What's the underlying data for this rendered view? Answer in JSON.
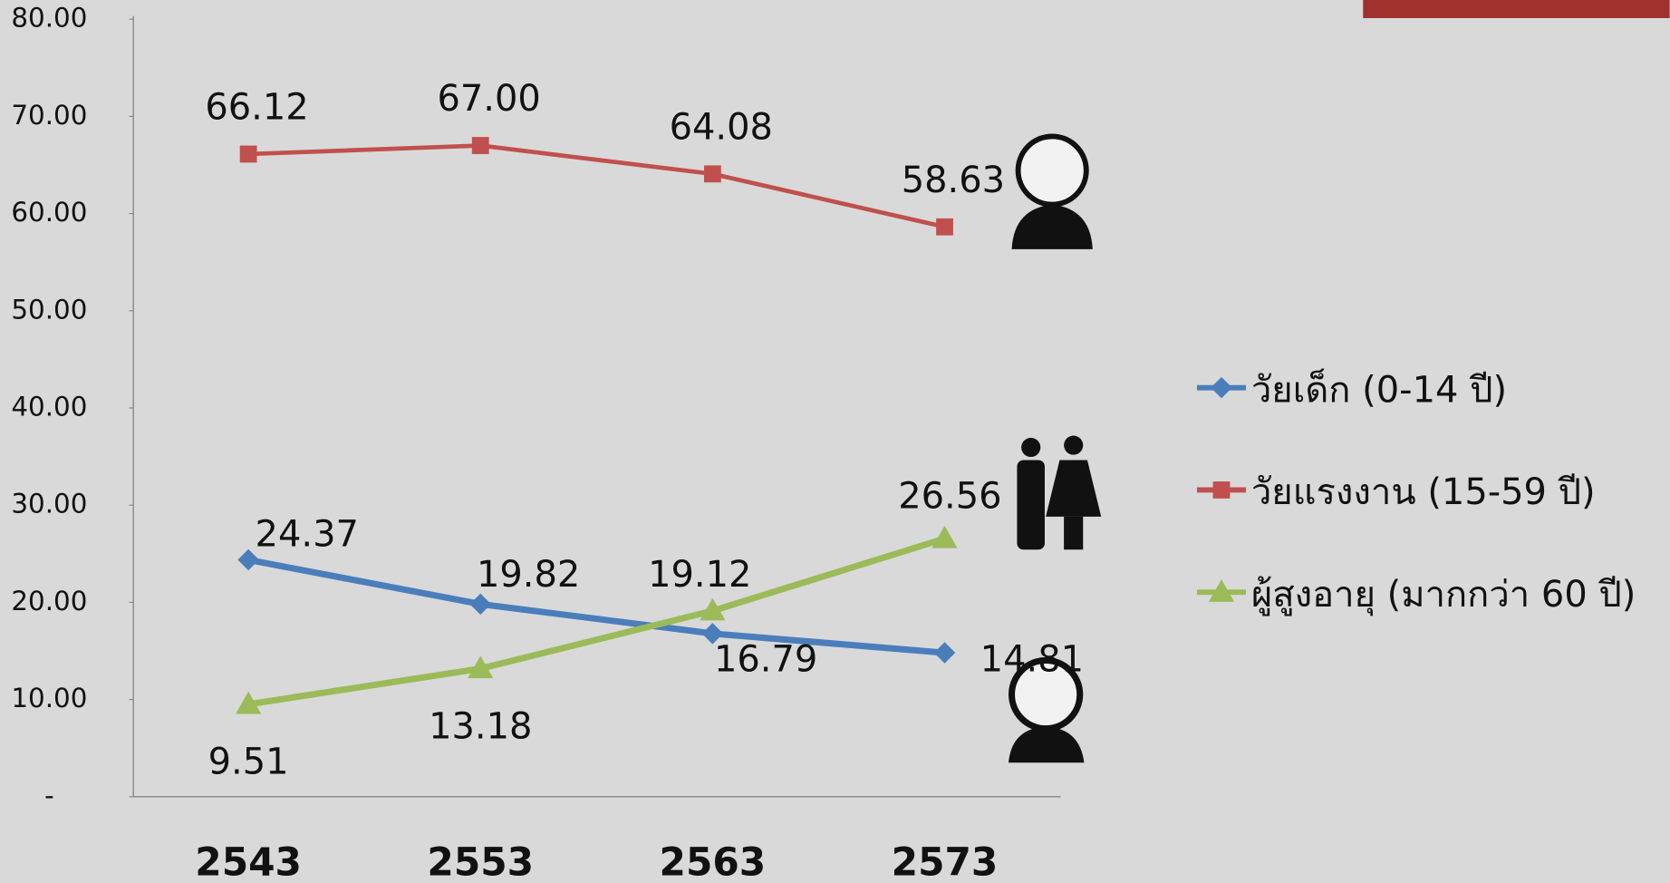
{
  "chart_data": {
    "type": "line",
    "categories": [
      "2543",
      "2553",
      "2563",
      "2573"
    ],
    "series": [
      {
        "name": "วัยเด็ก (0-14 ปี)",
        "color": "#4a7ebb",
        "marker": "diamond",
        "values": [
          24.37,
          19.82,
          16.79,
          14.81
        ],
        "value_labels": [
          "24.37",
          "19.82",
          "16.79",
          "14.81"
        ]
      },
      {
        "name": "วัยแรงงาน (15-59 ปี)",
        "color": "#c0504d",
        "marker": "square",
        "values": [
          66.12,
          67.0,
          64.08,
          58.63
        ],
        "value_labels": [
          "66.12",
          "67.00",
          "64.08",
          "58.63"
        ]
      },
      {
        "name": "ผู้สูงอายุ (มากกว่า 60 ปี)",
        "color": "#9bbb59",
        "marker": "triangle",
        "values": [
          9.51,
          13.18,
          19.12,
          26.56
        ],
        "value_labels": [
          "9.51",
          "13.18",
          "19.12",
          "26.56"
        ]
      }
    ],
    "ylim": [
      0,
      80
    ],
    "yticks": [
      {
        "value": 0,
        "label": "-"
      },
      {
        "value": 10,
        "label": "10.00"
      },
      {
        "value": 20,
        "label": "20.00"
      },
      {
        "value": 30,
        "label": "30.00"
      },
      {
        "value": 40,
        "label": "40.00"
      },
      {
        "value": 50,
        "label": "50.00"
      },
      {
        "value": 60,
        "label": "60.00"
      },
      {
        "value": 70,
        "label": "70.00"
      },
      {
        "value": 80,
        "label": "80.00"
      }
    ],
    "grid": false,
    "legend": "right"
  }
}
